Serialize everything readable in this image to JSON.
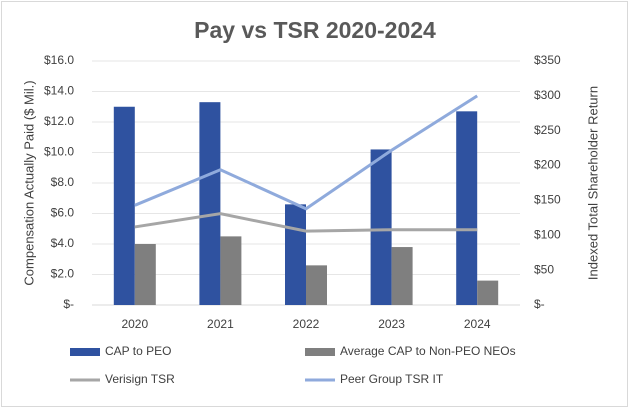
{
  "chart_data": {
    "type": "bar",
    "title": "Pay vs TSR 2020-2024",
    "y_label": "Compensation Actually Paid ($ Mil.)",
    "y2_label": "Indexed Total Shareholder Return",
    "categories": [
      "2020",
      "2021",
      "2022",
      "2023",
      "2024"
    ],
    "series": [
      {
        "name": "CAP to PEO",
        "type": "bar",
        "color": "#2f52a0",
        "values": [
          13.0,
          13.3,
          6.6,
          10.2,
          12.7
        ]
      },
      {
        "name": "Average CAP to Non-PEO NEOs",
        "type": "bar",
        "color": "#7f7f7f",
        "values": [
          4.0,
          4.5,
          2.6,
          3.8,
          1.6
        ]
      },
      {
        "name": "Verisign TSR",
        "type": "line",
        "axis": "y2",
        "color": "#a6a6a6",
        "values": [
          112,
          131,
          106,
          108,
          108
        ]
      },
      {
        "name": "Peer Group TSR IT",
        "type": "line",
        "axis": "y2",
        "color": "#8faadc",
        "values": [
          143,
          194,
          138,
          222,
          300
        ]
      }
    ],
    "ylim": [
      0,
      16
    ],
    "yticks": [
      {
        "value": 0,
        "label": "$-"
      },
      {
        "value": 2,
        "label": "$2.0"
      },
      {
        "value": 4,
        "label": "$4.0"
      },
      {
        "value": 6,
        "label": "$6.0"
      },
      {
        "value": 8,
        "label": "$8.0"
      },
      {
        "value": 10,
        "label": "$10.0"
      },
      {
        "value": 12,
        "label": "$12.0"
      },
      {
        "value": 14,
        "label": "$14.0"
      },
      {
        "value": 16,
        "label": "$16.0"
      }
    ],
    "y2lim": [
      0,
      350
    ],
    "y2ticks": [
      {
        "value": 0,
        "label": "$-"
      },
      {
        "value": 50,
        "label": "$50"
      },
      {
        "value": 100,
        "label": "$100"
      },
      {
        "value": 150,
        "label": "$150"
      },
      {
        "value": 200,
        "label": "$200"
      },
      {
        "value": 250,
        "label": "$250"
      },
      {
        "value": 300,
        "label": "$300"
      },
      {
        "value": 350,
        "label": "$350"
      }
    ],
    "grid": true
  }
}
